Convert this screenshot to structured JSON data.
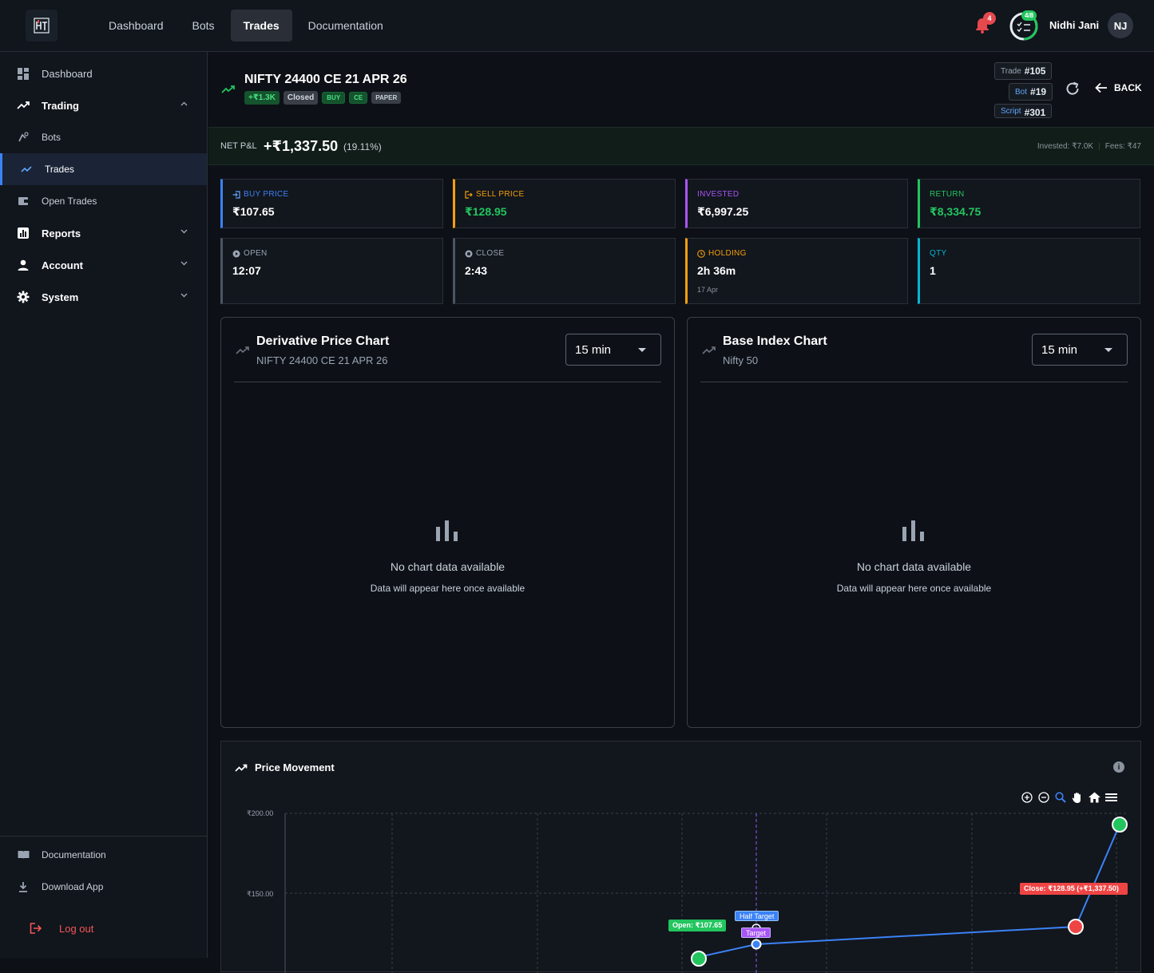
{
  "topnav": {
    "logo": "HT",
    "items": [
      {
        "label": "Dashboard",
        "active": false
      },
      {
        "label": "Bots",
        "active": false
      },
      {
        "label": "Trades",
        "active": true
      },
      {
        "label": "Documentation",
        "active": false
      }
    ],
    "notification_count": "4",
    "progress_label": "4/8",
    "progress": {
      "done": 4,
      "total": 8
    },
    "user_name": "Nidhi Jani",
    "user_initials": "NJ"
  },
  "sidebar": {
    "items": [
      {
        "label": "Dashboard",
        "icon": "dashboard-icon"
      },
      {
        "label": "Trading",
        "icon": "trending-up-icon",
        "expanded": true
      },
      {
        "label": "Bots",
        "icon": "bot-icon"
      },
      {
        "label": "Trades",
        "icon": "trending-up-icon",
        "active": true
      },
      {
        "label": "Open Trades",
        "icon": "wallet-icon"
      },
      {
        "label": "Reports",
        "icon": "bar-chart-icon"
      },
      {
        "label": "Account",
        "icon": "person-icon"
      },
      {
        "label": "System",
        "icon": "gear-icon"
      }
    ],
    "footer": [
      {
        "label": "Documentation",
        "icon": "book-icon"
      },
      {
        "label": "Download App",
        "icon": "download-icon"
      },
      {
        "label": "Log out",
        "icon": "logout-icon"
      }
    ]
  },
  "trade": {
    "title": "NIFTY 24400 CE 21 APR 26",
    "pnl_tag": "+₹1.3K",
    "status": "Closed",
    "side": "BUY",
    "option_type": "CE",
    "mode": "PAPER",
    "trade_label": "Trade",
    "trade_id": "#105",
    "bot_label": "Bot",
    "bot_id": "#19",
    "script_label": "Script",
    "script_id": "#301",
    "back_label": "BACK"
  },
  "pnl": {
    "label": "NET P&L",
    "value": "+₹1,337.50",
    "percent": "(19.11%)",
    "invested": "Invested: ₹7.0K",
    "fees": "Fees: ₹47"
  },
  "cards": [
    {
      "label": "BUY PRICE",
      "value": "₹107.65",
      "color": "#3b82f6",
      "value_color": "#ffffff",
      "icon": "login-icon"
    },
    {
      "label": "SELL PRICE",
      "value": "₹128.95",
      "color": "#f59e0b",
      "value_color": "#22c55e",
      "icon": "logout-icon"
    },
    {
      "label": "INVESTED",
      "value": "₹6,997.25",
      "color": "#a855f7",
      "value_color": "#ffffff",
      "icon": ""
    },
    {
      "label": "RETURN",
      "value": "₹8,334.75",
      "color": "#22c55e",
      "value_color": "#22c55e",
      "icon": ""
    },
    {
      "label": "OPEN",
      "value": "12:07",
      "color": "#4b5563",
      "value_color": "#ffffff",
      "icon": "play-circle-icon"
    },
    {
      "label": "CLOSE",
      "value": "2:43",
      "color": "#4b5563",
      "value_color": "#ffffff",
      "icon": "stop-circle-icon"
    },
    {
      "label": "HOLDING",
      "value": "2h 36m",
      "sub": "17 Apr",
      "color": "#f59e0b",
      "value_color": "#ffffff",
      "icon": "clock-icon"
    },
    {
      "label": "QTY",
      "value": "1",
      "color": "#06b6d4",
      "value_color": "#ffffff",
      "icon": ""
    }
  ],
  "charts": [
    {
      "title": "Derivative Price Chart",
      "subtitle": "NIFTY 24400 CE 21 APR 26",
      "interval": "15 min",
      "empty_title": "No chart data available",
      "empty_sub": "Data will appear here once available"
    },
    {
      "title": "Base Index Chart",
      "subtitle": "Nifty 50",
      "interval": "15 min",
      "empty_title": "No chart data available",
      "empty_sub": "Data will appear here once available"
    }
  ],
  "price_movement": {
    "title": "Price Movement",
    "y_labels": [
      "₹200.00",
      "₹150.00"
    ],
    "markers": {
      "open": "Open: ₹107.65",
      "half_target": "Half Target",
      "target": "Target",
      "close": "Close: ₹128.95 (+₹1,337.50)"
    },
    "colors": {
      "open": "#22c55e",
      "half_target": "#3b82f6",
      "target": "#a855f7",
      "close": "#ef4444",
      "line": "#3b82f6"
    }
  }
}
